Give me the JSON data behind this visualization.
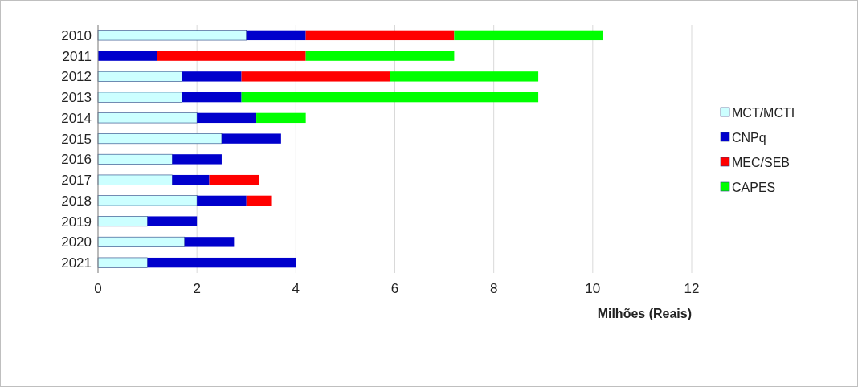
{
  "chart_data": {
    "type": "bar",
    "orientation": "horizontal",
    "stacked": true,
    "xlabel": "Milhões (Reais)",
    "categories": [
      "2010",
      "2011",
      "2012",
      "2013",
      "2014",
      "2015",
      "2016",
      "2017",
      "2018",
      "2019",
      "2020",
      "2021"
    ],
    "series": [
      {
        "name": "MCT/MCTI",
        "color": "#ccffff",
        "values": [
          3.0,
          0,
          1.7,
          1.7,
          2.0,
          2.5,
          1.5,
          1.5,
          2.0,
          1.0,
          1.75,
          1.0
        ]
      },
      {
        "name": "CNPq",
        "color": "#0000cc",
        "values": [
          1.2,
          1.2,
          1.2,
          1.2,
          1.2,
          1.2,
          1.0,
          0.75,
          1.0,
          1.0,
          1.0,
          3.0
        ]
      },
      {
        "name": "MEC/SEB",
        "color": "#ff0000",
        "values": [
          3.0,
          3.0,
          3.0,
          0,
          0,
          0,
          0,
          1.0,
          0.5,
          0,
          0,
          0
        ]
      },
      {
        "name": "CAPES",
        "color": "#00ff00",
        "values": [
          3.0,
          3.0,
          3.0,
          6.0,
          1.0,
          0,
          0,
          0,
          0,
          0,
          0,
          0
        ]
      }
    ],
    "xlim": [
      0,
      12
    ],
    "xticks": [
      0,
      2,
      4,
      6,
      8,
      10,
      12
    ],
    "grid": "x",
    "legend": "right"
  }
}
